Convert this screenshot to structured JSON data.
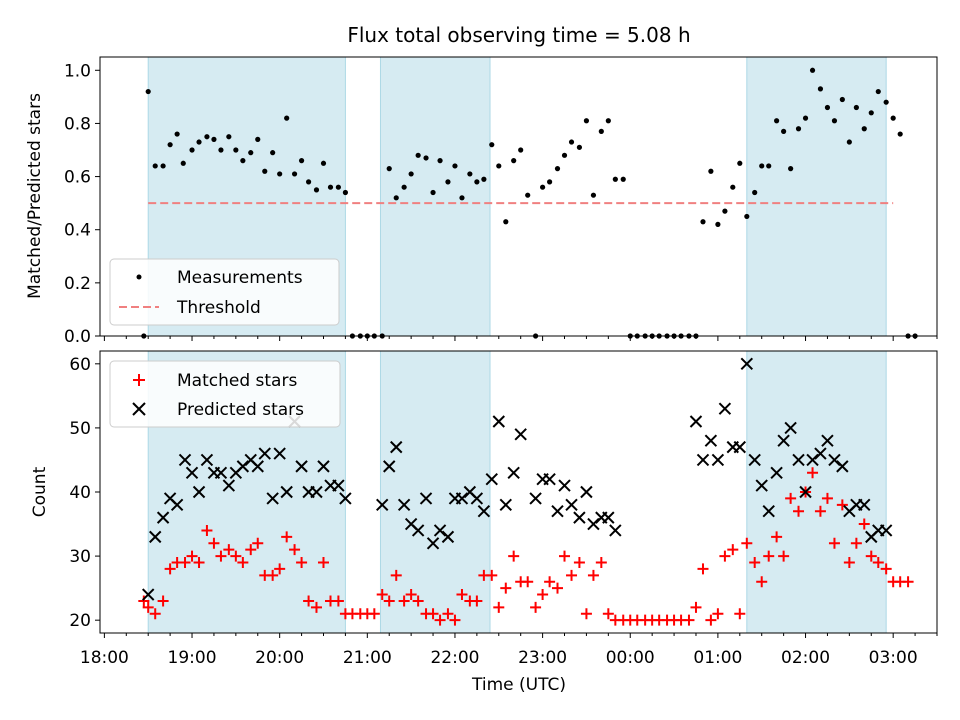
{
  "chart_data": {
    "type": "scatter",
    "title": "Flux total observing time = 5.08 h",
    "xlabel": "Time (UTC)",
    "x_ticks": [
      {
        "h": 18,
        "label": "18:00"
      },
      {
        "h": 19,
        "label": "19:00"
      },
      {
        "h": 20,
        "label": "20:00"
      },
      {
        "h": 21,
        "label": "21:00"
      },
      {
        "h": 22,
        "label": "22:00"
      },
      {
        "h": 23,
        "label": "23:00"
      },
      {
        "h": 24,
        "label": "00:00"
      },
      {
        "h": 25,
        "label": "01:00"
      },
      {
        "h": 26,
        "label": "02:00"
      },
      {
        "h": 27,
        "label": "03:00"
      }
    ],
    "xlim": [
      17.95,
      27.5
    ],
    "highlight_intervals": [
      [
        18.5,
        20.75
      ],
      [
        21.15,
        22.4
      ],
      [
        25.33,
        26.92
      ]
    ],
    "highlight_color": "#add8e6",
    "top": {
      "ylabel": "Matched/Predicted stars",
      "ylim": [
        0,
        1.05
      ],
      "y_ticks": [
        {
          "v": 0.0,
          "label": "0.0"
        },
        {
          "v": 0.2,
          "label": "0.2"
        },
        {
          "v": 0.4,
          "label": "0.4"
        },
        {
          "v": 0.6,
          "label": "0.6"
        },
        {
          "v": 0.8,
          "label": "0.8"
        },
        {
          "v": 1.0,
          "label": "1.0"
        }
      ],
      "threshold": 0.5,
      "threshold_range": [
        18.5,
        27.0
      ],
      "threshold_color": "#f08080",
      "legend": [
        {
          "kind": "point",
          "label": "Measurements"
        },
        {
          "kind": "dash",
          "label": "Threshold"
        }
      ],
      "measurements": [
        [
          18.45,
          0.0
        ],
        [
          18.5,
          0.92
        ],
        [
          18.58,
          0.64
        ],
        [
          18.67,
          0.64
        ],
        [
          18.75,
          0.72
        ],
        [
          18.83,
          0.76
        ],
        [
          18.9,
          0.65
        ],
        [
          19.0,
          0.7
        ],
        [
          19.08,
          0.73
        ],
        [
          19.17,
          0.75
        ],
        [
          19.25,
          0.74
        ],
        [
          19.33,
          0.7
        ],
        [
          19.42,
          0.75
        ],
        [
          19.5,
          0.7
        ],
        [
          19.58,
          0.66
        ],
        [
          19.67,
          0.69
        ],
        [
          19.75,
          0.74
        ],
        [
          19.83,
          0.62
        ],
        [
          19.92,
          0.69
        ],
        [
          20.0,
          0.61
        ],
        [
          20.08,
          0.82
        ],
        [
          20.17,
          0.61
        ],
        [
          20.25,
          0.66
        ],
        [
          20.33,
          0.58
        ],
        [
          20.42,
          0.55
        ],
        [
          20.5,
          0.65
        ],
        [
          20.58,
          0.56
        ],
        [
          20.67,
          0.56
        ],
        [
          20.75,
          0.54
        ],
        [
          20.83,
          0.0
        ],
        [
          20.92,
          0.0
        ],
        [
          21.0,
          0.0
        ],
        [
          21.08,
          0.0
        ],
        [
          21.17,
          0.0
        ],
        [
          21.25,
          0.63
        ],
        [
          21.33,
          0.52
        ],
        [
          21.42,
          0.56
        ],
        [
          21.5,
          0.61
        ],
        [
          21.58,
          0.68
        ],
        [
          21.67,
          0.67
        ],
        [
          21.75,
          0.54
        ],
        [
          21.83,
          0.66
        ],
        [
          21.92,
          0.58
        ],
        [
          22.0,
          0.64
        ],
        [
          22.08,
          0.52
        ],
        [
          22.17,
          0.61
        ],
        [
          22.25,
          0.58
        ],
        [
          22.33,
          0.59
        ],
        [
          22.42,
          0.72
        ],
        [
          22.5,
          0.64
        ],
        [
          22.58,
          0.43
        ],
        [
          22.67,
          0.66
        ],
        [
          22.75,
          0.7
        ],
        [
          22.83,
          0.53
        ],
        [
          22.92,
          0.0
        ],
        [
          23.0,
          0.56
        ],
        [
          23.08,
          0.58
        ],
        [
          23.17,
          0.63
        ],
        [
          23.25,
          0.68
        ],
        [
          23.33,
          0.73
        ],
        [
          23.42,
          0.71
        ],
        [
          23.5,
          0.81
        ],
        [
          23.58,
          0.53
        ],
        [
          23.67,
          0.77
        ],
        [
          23.75,
          0.81
        ],
        [
          23.83,
          0.59
        ],
        [
          23.92,
          0.59
        ],
        [
          24.0,
          0.0
        ],
        [
          24.08,
          0.0
        ],
        [
          24.17,
          0.0
        ],
        [
          24.25,
          0.0
        ],
        [
          24.33,
          0.0
        ],
        [
          24.42,
          0.0
        ],
        [
          24.5,
          0.0
        ],
        [
          24.58,
          0.0
        ],
        [
          24.67,
          0.0
        ],
        [
          24.75,
          0.0
        ],
        [
          24.83,
          0.43
        ],
        [
          24.92,
          0.62
        ],
        [
          25.0,
          0.42
        ],
        [
          25.08,
          0.47
        ],
        [
          25.17,
          0.56
        ],
        [
          25.25,
          0.65
        ],
        [
          25.33,
          0.45
        ],
        [
          25.42,
          0.54
        ],
        [
          25.5,
          0.64
        ],
        [
          25.58,
          0.64
        ],
        [
          25.67,
          0.81
        ],
        [
          25.75,
          0.77
        ],
        [
          25.83,
          0.63
        ],
        [
          25.92,
          0.78
        ],
        [
          26.0,
          0.82
        ],
        [
          26.08,
          1.0
        ],
        [
          26.17,
          0.93
        ],
        [
          26.25,
          0.86
        ],
        [
          26.33,
          0.81
        ],
        [
          26.42,
          0.89
        ],
        [
          26.5,
          0.73
        ],
        [
          26.58,
          0.86
        ],
        [
          26.67,
          0.78
        ],
        [
          26.75,
          0.84
        ],
        [
          26.83,
          0.92
        ],
        [
          26.92,
          0.88
        ],
        [
          27.0,
          0.82
        ],
        [
          27.08,
          0.76
        ],
        [
          27.17,
          0.0
        ],
        [
          27.25,
          0.0
        ]
      ]
    },
    "bottom": {
      "ylabel": "Count",
      "ylim": [
        18,
        62
      ],
      "y_ticks": [
        {
          "v": 20,
          "label": "20"
        },
        {
          "v": 30,
          "label": "30"
        },
        {
          "v": 40,
          "label": "40"
        },
        {
          "v": 50,
          "label": "50"
        },
        {
          "v": 60,
          "label": "60"
        }
      ],
      "legend": [
        {
          "kind": "plus",
          "label": "Matched stars"
        },
        {
          "kind": "cross",
          "label": "Predicted stars"
        }
      ],
      "matched_color": "#ff0000",
      "predicted_color": "#000000",
      "matched": [
        [
          18.45,
          23
        ],
        [
          18.5,
          22
        ],
        [
          18.58,
          21
        ],
        [
          18.67,
          23
        ],
        [
          18.75,
          28
        ],
        [
          18.83,
          29
        ],
        [
          18.92,
          29
        ],
        [
          19.0,
          30
        ],
        [
          19.08,
          29
        ],
        [
          19.17,
          34
        ],
        [
          19.25,
          32
        ],
        [
          19.33,
          30
        ],
        [
          19.42,
          31
        ],
        [
          19.5,
          30
        ],
        [
          19.58,
          29
        ],
        [
          19.67,
          31
        ],
        [
          19.75,
          32
        ],
        [
          19.83,
          27
        ],
        [
          19.92,
          27
        ],
        [
          20.0,
          28
        ],
        [
          20.08,
          33
        ],
        [
          20.17,
          31
        ],
        [
          20.25,
          29
        ],
        [
          20.33,
          23
        ],
        [
          20.42,
          22
        ],
        [
          20.5,
          29
        ],
        [
          20.58,
          23
        ],
        [
          20.67,
          23
        ],
        [
          20.75,
          21
        ],
        [
          20.83,
          21
        ],
        [
          20.92,
          21
        ],
        [
          21.0,
          21
        ],
        [
          21.08,
          21
        ],
        [
          21.17,
          24
        ],
        [
          21.25,
          23
        ],
        [
          21.33,
          27
        ],
        [
          21.42,
          23
        ],
        [
          21.5,
          24
        ],
        [
          21.58,
          23
        ],
        [
          21.67,
          21
        ],
        [
          21.75,
          21
        ],
        [
          21.83,
          20
        ],
        [
          21.92,
          21
        ],
        [
          22.0,
          20
        ],
        [
          22.08,
          24
        ],
        [
          22.17,
          23
        ],
        [
          22.25,
          23
        ],
        [
          22.33,
          27
        ],
        [
          22.42,
          27
        ],
        [
          22.5,
          22
        ],
        [
          22.58,
          25
        ],
        [
          22.67,
          30
        ],
        [
          22.75,
          26
        ],
        [
          22.83,
          26
        ],
        [
          22.92,
          22
        ],
        [
          23.0,
          24
        ],
        [
          23.08,
          26
        ],
        [
          23.17,
          25
        ],
        [
          23.25,
          30
        ],
        [
          23.33,
          27
        ],
        [
          23.42,
          29
        ],
        [
          23.5,
          21
        ],
        [
          23.58,
          27
        ],
        [
          23.67,
          29
        ],
        [
          23.75,
          21
        ],
        [
          23.83,
          20
        ],
        [
          23.92,
          20
        ],
        [
          24.0,
          20
        ],
        [
          24.08,
          20
        ],
        [
          24.17,
          20
        ],
        [
          24.25,
          20
        ],
        [
          24.33,
          20
        ],
        [
          24.42,
          20
        ],
        [
          24.5,
          20
        ],
        [
          24.58,
          20
        ],
        [
          24.67,
          20
        ],
        [
          24.75,
          22
        ],
        [
          24.83,
          28
        ],
        [
          24.92,
          20
        ],
        [
          25.0,
          21
        ],
        [
          25.08,
          30
        ],
        [
          25.17,
          31
        ],
        [
          25.25,
          21
        ],
        [
          25.33,
          32
        ],
        [
          25.42,
          29
        ],
        [
          25.5,
          26
        ],
        [
          25.58,
          30
        ],
        [
          25.67,
          33
        ],
        [
          25.75,
          30
        ],
        [
          25.83,
          39
        ],
        [
          25.92,
          37
        ],
        [
          26.0,
          40
        ],
        [
          26.08,
          43
        ],
        [
          26.17,
          37
        ],
        [
          26.25,
          39
        ],
        [
          26.33,
          32
        ],
        [
          26.42,
          38
        ],
        [
          26.5,
          29
        ],
        [
          26.58,
          32
        ],
        [
          26.67,
          35
        ],
        [
          26.75,
          30
        ],
        [
          26.83,
          29
        ],
        [
          26.92,
          28
        ],
        [
          27.0,
          26
        ],
        [
          27.08,
          26
        ],
        [
          27.17,
          26
        ]
      ],
      "predicted": [
        [
          18.5,
          24
        ],
        [
          18.58,
          33
        ],
        [
          18.67,
          36
        ],
        [
          18.75,
          39
        ],
        [
          18.83,
          38
        ],
        [
          18.92,
          45
        ],
        [
          19.0,
          43
        ],
        [
          19.08,
          40
        ],
        [
          19.17,
          45
        ],
        [
          19.25,
          43
        ],
        [
          19.33,
          43
        ],
        [
          19.42,
          41
        ],
        [
          19.5,
          43
        ],
        [
          19.58,
          44
        ],
        [
          19.67,
          45
        ],
        [
          19.75,
          44
        ],
        [
          19.83,
          46
        ],
        [
          19.92,
          39
        ],
        [
          20.0,
          46
        ],
        [
          20.08,
          40
        ],
        [
          20.17,
          51
        ],
        [
          20.25,
          44
        ],
        [
          20.33,
          40
        ],
        [
          20.42,
          40
        ],
        [
          20.5,
          44
        ],
        [
          20.58,
          41
        ],
        [
          20.67,
          41
        ],
        [
          20.75,
          39
        ],
        [
          21.17,
          38
        ],
        [
          21.25,
          44
        ],
        [
          21.33,
          47
        ],
        [
          21.42,
          38
        ],
        [
          21.5,
          35
        ],
        [
          21.58,
          34
        ],
        [
          21.67,
          39
        ],
        [
          21.75,
          32
        ],
        [
          21.83,
          34
        ],
        [
          21.92,
          33
        ],
        [
          22.0,
          39
        ],
        [
          22.08,
          39
        ],
        [
          22.17,
          40
        ],
        [
          22.25,
          39
        ],
        [
          22.33,
          37
        ],
        [
          22.42,
          42
        ],
        [
          22.5,
          51
        ],
        [
          22.58,
          38
        ],
        [
          22.67,
          43
        ],
        [
          22.75,
          49
        ],
        [
          22.92,
          39
        ],
        [
          23.0,
          42
        ],
        [
          23.08,
          42
        ],
        [
          23.17,
          37
        ],
        [
          23.25,
          41
        ],
        [
          23.33,
          38
        ],
        [
          23.42,
          36
        ],
        [
          23.5,
          40
        ],
        [
          23.58,
          35
        ],
        [
          23.67,
          36
        ],
        [
          23.75,
          36
        ],
        [
          23.83,
          34
        ],
        [
          24.75,
          51
        ],
        [
          24.83,
          45
        ],
        [
          24.92,
          48
        ],
        [
          25.0,
          45
        ],
        [
          25.08,
          53
        ],
        [
          25.17,
          47
        ],
        [
          25.25,
          47
        ],
        [
          25.33,
          60
        ],
        [
          25.42,
          45
        ],
        [
          25.5,
          41
        ],
        [
          25.58,
          37
        ],
        [
          25.67,
          43
        ],
        [
          25.75,
          48
        ],
        [
          25.83,
          50
        ],
        [
          25.92,
          45
        ],
        [
          26.0,
          40
        ],
        [
          26.08,
          45
        ],
        [
          26.17,
          46
        ],
        [
          26.25,
          48
        ],
        [
          26.33,
          45
        ],
        [
          26.42,
          44
        ],
        [
          26.5,
          37
        ],
        [
          26.58,
          38
        ],
        [
          26.67,
          38
        ],
        [
          26.75,
          33
        ],
        [
          26.83,
          34
        ],
        [
          26.92,
          34
        ]
      ]
    }
  }
}
